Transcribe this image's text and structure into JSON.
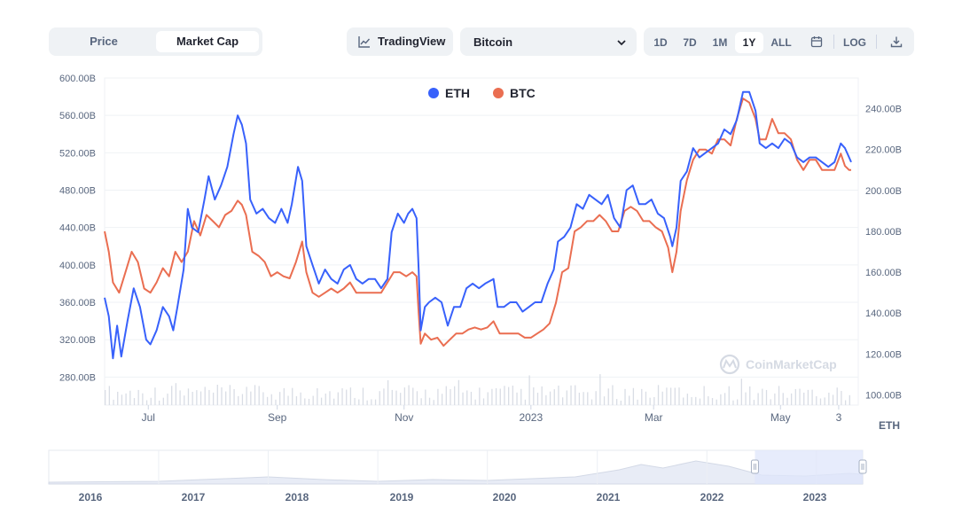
{
  "toolbar": {
    "tabs": [
      {
        "label": "Price",
        "active": false
      },
      {
        "label": "Market Cap",
        "active": true
      }
    ],
    "tradingview_label": "TradingView",
    "compare_select_value": "Bitcoin",
    "ranges": [
      {
        "label": "1D",
        "active": false
      },
      {
        "label": "7D",
        "active": false
      },
      {
        "label": "1M",
        "active": false
      },
      {
        "label": "1Y",
        "active": true
      },
      {
        "label": "ALL",
        "active": false
      }
    ],
    "log_label": "LOG",
    "icons": [
      "line-chart-icon",
      "chevron-down-icon",
      "calendar-icon",
      "download-icon"
    ]
  },
  "chart_data": {
    "type": "line",
    "legend": {
      "placement": "top-center",
      "entries": [
        "ETH",
        "BTC"
      ]
    },
    "colors": {
      "ETH": "#3861fb",
      "BTC": "#ea6e51",
      "volume": "#d9dde5",
      "grid": "#eff2f5",
      "navigator_fill": "#e8ecf6",
      "navigator_selection": "#dfe6fb"
    },
    "watermark": "CoinMarketCap",
    "y_left": {
      "label": "",
      "ticks": [
        "600.00B",
        "560.00B",
        "520.00B",
        "480.00B",
        "440.00B",
        "400.00B",
        "360.00B",
        "320.00B",
        "280.00B"
      ],
      "range": [
        250,
        600
      ]
    },
    "y_right": {
      "label": "",
      "ticks": [
        "240.00B",
        "220.00B",
        "200.00B",
        "180.00B",
        "160.00B",
        "140.00B",
        "120.00B",
        "100.00B"
      ],
      "range": [
        95,
        255
      ]
    },
    "x_ticks": [
      "Jul",
      "Sep",
      "Nov",
      "2023",
      "Mar",
      "May",
      "3"
    ],
    "x_axis_corner_label": "ETH",
    "x_range": [
      "2022-06-10",
      "2023-06-04"
    ],
    "series": [
      {
        "name": "ETH",
        "axis": "left",
        "points": [
          [
            "2022-06-10",
            365
          ],
          [
            "2022-06-12",
            345
          ],
          [
            "2022-06-14",
            300
          ],
          [
            "2022-06-16",
            335
          ],
          [
            "2022-06-18",
            302
          ],
          [
            "2022-06-21",
            340
          ],
          [
            "2022-06-24",
            375
          ],
          [
            "2022-06-27",
            355
          ],
          [
            "2022-06-30",
            320
          ],
          [
            "2022-07-02",
            315
          ],
          [
            "2022-07-05",
            330
          ],
          [
            "2022-07-08",
            355
          ],
          [
            "2022-07-11",
            345
          ],
          [
            "2022-07-13",
            330
          ],
          [
            "2022-07-15",
            355
          ],
          [
            "2022-07-18",
            395
          ],
          [
            "2022-07-20",
            460
          ],
          [
            "2022-07-22",
            440
          ],
          [
            "2022-07-25",
            435
          ],
          [
            "2022-07-28",
            470
          ],
          [
            "2022-07-30",
            495
          ],
          [
            "2022-08-02",
            470
          ],
          [
            "2022-08-05",
            485
          ],
          [
            "2022-08-08",
            505
          ],
          [
            "2022-08-11",
            540
          ],
          [
            "2022-08-13",
            560
          ],
          [
            "2022-08-15",
            550
          ],
          [
            "2022-08-17",
            530
          ],
          [
            "2022-08-19",
            470
          ],
          [
            "2022-08-22",
            455
          ],
          [
            "2022-08-25",
            460
          ],
          [
            "2022-08-28",
            450
          ],
          [
            "2022-08-31",
            445
          ],
          [
            "2022-09-03",
            460
          ],
          [
            "2022-09-06",
            445
          ],
          [
            "2022-09-08",
            465
          ],
          [
            "2022-09-11",
            505
          ],
          [
            "2022-09-13",
            490
          ],
          [
            "2022-09-15",
            420
          ],
          [
            "2022-09-18",
            400
          ],
          [
            "2022-09-21",
            380
          ],
          [
            "2022-09-24",
            395
          ],
          [
            "2022-09-27",
            385
          ],
          [
            "2022-09-30",
            380
          ],
          [
            "2022-10-03",
            395
          ],
          [
            "2022-10-06",
            400
          ],
          [
            "2022-10-09",
            385
          ],
          [
            "2022-10-12",
            380
          ],
          [
            "2022-10-15",
            385
          ],
          [
            "2022-10-18",
            385
          ],
          [
            "2022-10-21",
            375
          ],
          [
            "2022-10-24",
            385
          ],
          [
            "2022-10-26",
            435
          ],
          [
            "2022-10-29",
            455
          ],
          [
            "2022-11-01",
            445
          ],
          [
            "2022-11-03",
            455
          ],
          [
            "2022-11-05",
            460
          ],
          [
            "2022-11-07",
            450
          ],
          [
            "2022-11-08",
            395
          ],
          [
            "2022-11-09",
            330
          ],
          [
            "2022-11-11",
            355
          ],
          [
            "2022-11-13",
            360
          ],
          [
            "2022-11-16",
            365
          ],
          [
            "2022-11-19",
            360
          ],
          [
            "2022-11-22",
            335
          ],
          [
            "2022-11-25",
            355
          ],
          [
            "2022-11-28",
            355
          ],
          [
            "2022-12-01",
            375
          ],
          [
            "2022-12-04",
            380
          ],
          [
            "2022-12-07",
            375
          ],
          [
            "2022-12-10",
            380
          ],
          [
            "2022-12-14",
            385
          ],
          [
            "2022-12-16",
            355
          ],
          [
            "2022-12-19",
            355
          ],
          [
            "2022-12-22",
            360
          ],
          [
            "2022-12-25",
            360
          ],
          [
            "2022-12-28",
            350
          ],
          [
            "2022-12-31",
            355
          ],
          [
            "2023-01-03",
            360
          ],
          [
            "2023-01-06",
            360
          ],
          [
            "2023-01-09",
            380
          ],
          [
            "2023-01-12",
            395
          ],
          [
            "2023-01-14",
            425
          ],
          [
            "2023-01-17",
            430
          ],
          [
            "2023-01-20",
            440
          ],
          [
            "2023-01-23",
            465
          ],
          [
            "2023-01-26",
            460
          ],
          [
            "2023-01-29",
            475
          ],
          [
            "2023-02-01",
            470
          ],
          [
            "2023-02-04",
            465
          ],
          [
            "2023-02-07",
            475
          ],
          [
            "2023-02-10",
            450
          ],
          [
            "2023-02-13",
            440
          ],
          [
            "2023-02-16",
            480
          ],
          [
            "2023-02-19",
            485
          ],
          [
            "2023-02-22",
            465
          ],
          [
            "2023-02-25",
            465
          ],
          [
            "2023-02-28",
            470
          ],
          [
            "2023-03-03",
            455
          ],
          [
            "2023-03-06",
            450
          ],
          [
            "2023-03-09",
            430
          ],
          [
            "2023-03-10",
            420
          ],
          [
            "2023-03-12",
            440
          ],
          [
            "2023-03-14",
            490
          ],
          [
            "2023-03-17",
            500
          ],
          [
            "2023-03-20",
            525
          ],
          [
            "2023-03-23",
            515
          ],
          [
            "2023-03-26",
            520
          ],
          [
            "2023-03-29",
            525
          ],
          [
            "2023-04-01",
            530
          ],
          [
            "2023-04-04",
            545
          ],
          [
            "2023-04-07",
            540
          ],
          [
            "2023-04-10",
            555
          ],
          [
            "2023-04-13",
            585
          ],
          [
            "2023-04-16",
            585
          ],
          [
            "2023-04-19",
            565
          ],
          [
            "2023-04-21",
            530
          ],
          [
            "2023-04-24",
            525
          ],
          [
            "2023-04-27",
            530
          ],
          [
            "2023-04-30",
            525
          ],
          [
            "2023-05-03",
            535
          ],
          [
            "2023-05-06",
            530
          ],
          [
            "2023-05-09",
            515
          ],
          [
            "2023-05-12",
            510
          ],
          [
            "2023-05-15",
            515
          ],
          [
            "2023-05-18",
            515
          ],
          [
            "2023-05-21",
            510
          ],
          [
            "2023-05-24",
            505
          ],
          [
            "2023-05-27",
            510
          ],
          [
            "2023-05-30",
            530
          ],
          [
            "2023-06-01",
            525
          ],
          [
            "2023-06-03",
            515
          ],
          [
            "2023-06-04",
            510
          ]
        ]
      },
      {
        "name": "BTC",
        "axis": "right",
        "points": [
          [
            "2022-06-10",
            180
          ],
          [
            "2022-06-12",
            170
          ],
          [
            "2022-06-14",
            155
          ],
          [
            "2022-06-17",
            150
          ],
          [
            "2022-06-20",
            160
          ],
          [
            "2022-06-23",
            170
          ],
          [
            "2022-06-26",
            165
          ],
          [
            "2022-06-29",
            152
          ],
          [
            "2022-07-02",
            150
          ],
          [
            "2022-07-05",
            155
          ],
          [
            "2022-07-08",
            162
          ],
          [
            "2022-07-11",
            158
          ],
          [
            "2022-07-14",
            170
          ],
          [
            "2022-07-17",
            165
          ],
          [
            "2022-07-20",
            170
          ],
          [
            "2022-07-23",
            185
          ],
          [
            "2022-07-26",
            178
          ],
          [
            "2022-07-29",
            188
          ],
          [
            "2022-08-01",
            185
          ],
          [
            "2022-08-04",
            182
          ],
          [
            "2022-08-07",
            188
          ],
          [
            "2022-08-10",
            190
          ],
          [
            "2022-08-13",
            195
          ],
          [
            "2022-08-15",
            193
          ],
          [
            "2022-08-17",
            188
          ],
          [
            "2022-08-20",
            170
          ],
          [
            "2022-08-23",
            168
          ],
          [
            "2022-08-26",
            165
          ],
          [
            "2022-08-29",
            158
          ],
          [
            "2022-09-01",
            160
          ],
          [
            "2022-09-04",
            158
          ],
          [
            "2022-09-07",
            157
          ],
          [
            "2022-09-10",
            165
          ],
          [
            "2022-09-13",
            175
          ],
          [
            "2022-09-15",
            160
          ],
          [
            "2022-09-18",
            150
          ],
          [
            "2022-09-21",
            148
          ],
          [
            "2022-09-24",
            150
          ],
          [
            "2022-09-27",
            152
          ],
          [
            "2022-09-30",
            150
          ],
          [
            "2022-10-03",
            152
          ],
          [
            "2022-10-06",
            155
          ],
          [
            "2022-10-09",
            150
          ],
          [
            "2022-10-12",
            150
          ],
          [
            "2022-10-15",
            150
          ],
          [
            "2022-10-18",
            150
          ],
          [
            "2022-10-21",
            150
          ],
          [
            "2022-10-24",
            155
          ],
          [
            "2022-10-27",
            160
          ],
          [
            "2022-10-30",
            160
          ],
          [
            "2022-11-02",
            158
          ],
          [
            "2022-11-05",
            160
          ],
          [
            "2022-11-07",
            158
          ],
          [
            "2022-11-08",
            140
          ],
          [
            "2022-11-09",
            125
          ],
          [
            "2022-11-11",
            130
          ],
          [
            "2022-11-14",
            127
          ],
          [
            "2022-11-17",
            128
          ],
          [
            "2022-11-20",
            124
          ],
          [
            "2022-11-23",
            127
          ],
          [
            "2022-11-26",
            130
          ],
          [
            "2022-11-29",
            130
          ],
          [
            "2022-12-02",
            132
          ],
          [
            "2022-12-05",
            133
          ],
          [
            "2022-12-08",
            132
          ],
          [
            "2022-12-11",
            133
          ],
          [
            "2022-12-14",
            136
          ],
          [
            "2022-12-17",
            130
          ],
          [
            "2022-12-20",
            130
          ],
          [
            "2022-12-23",
            130
          ],
          [
            "2022-12-26",
            130
          ],
          [
            "2022-12-29",
            128
          ],
          [
            "2023-01-01",
            128
          ],
          [
            "2023-01-04",
            130
          ],
          [
            "2023-01-07",
            132
          ],
          [
            "2023-01-10",
            135
          ],
          [
            "2023-01-13",
            145
          ],
          [
            "2023-01-16",
            160
          ],
          [
            "2023-01-19",
            162
          ],
          [
            "2023-01-22",
            180
          ],
          [
            "2023-01-25",
            182
          ],
          [
            "2023-01-28",
            185
          ],
          [
            "2023-01-31",
            185
          ],
          [
            "2023-02-03",
            188
          ],
          [
            "2023-02-06",
            185
          ],
          [
            "2023-02-09",
            180
          ],
          [
            "2023-02-12",
            180
          ],
          [
            "2023-02-15",
            190
          ],
          [
            "2023-02-18",
            192
          ],
          [
            "2023-02-21",
            190
          ],
          [
            "2023-02-24",
            185
          ],
          [
            "2023-02-27",
            185
          ],
          [
            "2023-03-02",
            182
          ],
          [
            "2023-03-05",
            180
          ],
          [
            "2023-03-08",
            172
          ],
          [
            "2023-03-10",
            160
          ],
          [
            "2023-03-12",
            170
          ],
          [
            "2023-03-14",
            190
          ],
          [
            "2023-03-17",
            205
          ],
          [
            "2023-03-20",
            215
          ],
          [
            "2023-03-23",
            220
          ],
          [
            "2023-03-26",
            220
          ],
          [
            "2023-03-29",
            218
          ],
          [
            "2023-04-01",
            225
          ],
          [
            "2023-04-04",
            225
          ],
          [
            "2023-04-07",
            222
          ],
          [
            "2023-04-10",
            235
          ],
          [
            "2023-04-13",
            245
          ],
          [
            "2023-04-16",
            243
          ],
          [
            "2023-04-19",
            235
          ],
          [
            "2023-04-21",
            225
          ],
          [
            "2023-04-24",
            225
          ],
          [
            "2023-04-27",
            235
          ],
          [
            "2023-04-30",
            228
          ],
          [
            "2023-05-03",
            228
          ],
          [
            "2023-05-06",
            225
          ],
          [
            "2023-05-09",
            215
          ],
          [
            "2023-05-12",
            210
          ],
          [
            "2023-05-15",
            215
          ],
          [
            "2023-05-18",
            215
          ],
          [
            "2023-05-21",
            210
          ],
          [
            "2023-05-24",
            210
          ],
          [
            "2023-05-27",
            210
          ],
          [
            "2023-05-30",
            218
          ],
          [
            "2023-06-01",
            212
          ],
          [
            "2023-06-03",
            210
          ],
          [
            "2023-06-04",
            210
          ]
        ]
      }
    ],
    "navigator": {
      "years": [
        "2016",
        "2017",
        "2018",
        "2019",
        "2020",
        "2021",
        "2022",
        "2023"
      ],
      "selection": [
        "2022-06-10",
        "2023-06-04"
      ]
    }
  }
}
